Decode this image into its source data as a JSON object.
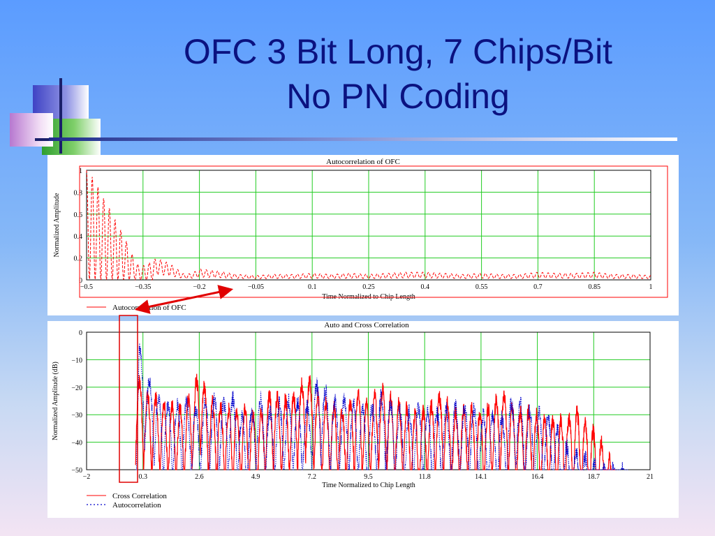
{
  "slide": {
    "title_line1": "OFC 3 Bit Long, 7 Chips/Bit",
    "title_line2": "No PN Coding"
  },
  "colors": {
    "title": "#0b1280",
    "grid": "#22cc22",
    "autocorr": "#ff0000",
    "crosscorr": "#ff0000",
    "auto_dotted": "#0000cc",
    "annotation": "#e00000"
  },
  "chart_data": [
    {
      "type": "line",
      "title": "Autocorrelation of OFC",
      "xlabel": "Time Normalized to Chip Length",
      "ylabel": "Normalized Amplitude",
      "xlim": [
        -0.5,
        1
      ],
      "ylim": [
        0,
        1
      ],
      "xticks": [
        "−0.5",
        "−0.35",
        "−0.2",
        "−0.05",
        "0.1",
        "0.25",
        "0.4",
        "0.55",
        "0.7",
        "0.85",
        "1"
      ],
      "yticks": [
        "0",
        "0.2",
        "0.4",
        "0.6",
        "0.8",
        "1"
      ],
      "grid": true,
      "legend_position": "bottom-left",
      "series": [
        {
          "name": "Autocorrelation of OFC",
          "style": "dashed",
          "color": "#ff0000",
          "peak_envelope": {
            "x": [
              -0.5,
              -0.48,
              -0.46,
              -0.44,
              -0.42,
              -0.4,
              -0.38,
              -0.36,
              -0.34,
              -0.32,
              -0.3,
              -0.28,
              -0.26,
              -0.24,
              -0.22,
              -0.2,
              -0.15,
              -0.1,
              -0.05,
              0.0,
              0.05,
              0.1,
              0.15,
              0.2,
              0.25,
              0.3,
              0.35,
              0.4,
              0.45,
              0.5,
              0.55,
              0.6,
              0.65,
              0.7,
              0.75,
              0.8,
              0.85,
              0.9,
              0.95,
              1.0
            ],
            "y": [
              1.0,
              0.92,
              0.78,
              0.66,
              0.52,
              0.4,
              0.24,
              0.12,
              0.14,
              0.19,
              0.18,
              0.15,
              0.1,
              0.05,
              0.06,
              0.1,
              0.08,
              0.05,
              0.04,
              0.05,
              0.05,
              0.06,
              0.05,
              0.06,
              0.05,
              0.06,
              0.07,
              0.07,
              0.06,
              0.05,
              0.06,
              0.05,
              0.05,
              0.07,
              0.06,
              0.06,
              0.07,
              0.05,
              0.05,
              0.04
            ]
          }
        }
      ]
    },
    {
      "type": "line",
      "title": "Auto and Cross Correlation",
      "xlabel": "Time Normalized to Chip Length",
      "ylabel": "Normalized Amplitude (dB)",
      "xlim": [
        -2,
        21
      ],
      "ylim": [
        -50,
        0
      ],
      "xticks": [
        "−2",
        "0.3",
        "2.6",
        "4.9",
        "7.2",
        "9.5",
        "11.8",
        "14.1",
        "16.4",
        "18.7",
        "21"
      ],
      "yticks": [
        "0",
        "−10",
        "−20",
        "−30",
        "−40",
        "−50"
      ],
      "grid": true,
      "legend_position": "bottom-left",
      "series": [
        {
          "name": "Cross Correlation",
          "style": "solid",
          "color": "#ff0000",
          "peak_envelope": {
            "x": [
              0.0,
              0.5,
              1.0,
              1.5,
              2.0,
              2.6,
              3.0,
              3.5,
              4.0,
              4.5,
              5.0,
              5.5,
              6.0,
              6.5,
              7.0,
              7.5,
              8.0,
              8.5,
              9.0,
              9.5,
              10.0,
              10.5,
              11.0,
              11.5,
              12.0,
              12.5,
              13.0,
              13.5,
              14.0,
              14.5,
              15.0,
              15.5,
              16.0,
              16.5,
              17.0,
              17.5,
              18.0,
              18.5,
              19.0,
              19.5
            ],
            "y": [
              -13,
              -20,
              -22,
              -24,
              -25,
              -12,
              -22,
              -24,
              -26,
              -25,
              -28,
              -19,
              -22,
              -20,
              -13,
              -22,
              -24,
              -26,
              -19,
              -24,
              -17,
              -22,
              -24,
              -28,
              -24,
              -20,
              -27,
              -24,
              -26,
              -24,
              -19,
              -26,
              -26,
              -28,
              -29,
              -29,
              -26,
              -31,
              -37,
              -45
            ]
          }
        },
        {
          "name": "Autocorrelation",
          "style": "dotted",
          "color": "#0000cc",
          "peak_envelope": {
            "x": [
              0.0,
              0.15,
              0.3,
              0.6,
              1.0,
              1.5,
              2.0,
              2.5,
              3.0,
              3.5,
              4.0,
              4.5,
              5.0,
              5.5,
              6.0,
              6.5,
              7.0,
              7.5,
              8.0,
              8.5,
              9.0,
              9.5,
              10.0,
              10.5,
              11.0,
              11.5,
              12.0,
              12.5,
              13.0,
              13.5,
              14.0,
              14.5,
              15.0,
              15.5,
              16.0,
              16.5,
              17.0,
              17.5,
              18.0,
              18.5,
              19.0,
              19.5,
              20.0
            ],
            "y": [
              -36,
              -1,
              -10,
              -15,
              -22,
              -24,
              -22,
              -25,
              -20,
              -23,
              -21,
              -30,
              -20,
              -26,
              -22,
              -22,
              -24,
              -14,
              -22,
              -22,
              -23,
              -26,
              -20,
              -24,
              -27,
              -24,
              -26,
              -26,
              -24,
              -24,
              -26,
              -28,
              -28,
              -20,
              -26,
              -26,
              -28,
              -38,
              -40,
              -43,
              -46,
              -46,
              -46
            ]
          }
        }
      ]
    }
  ]
}
